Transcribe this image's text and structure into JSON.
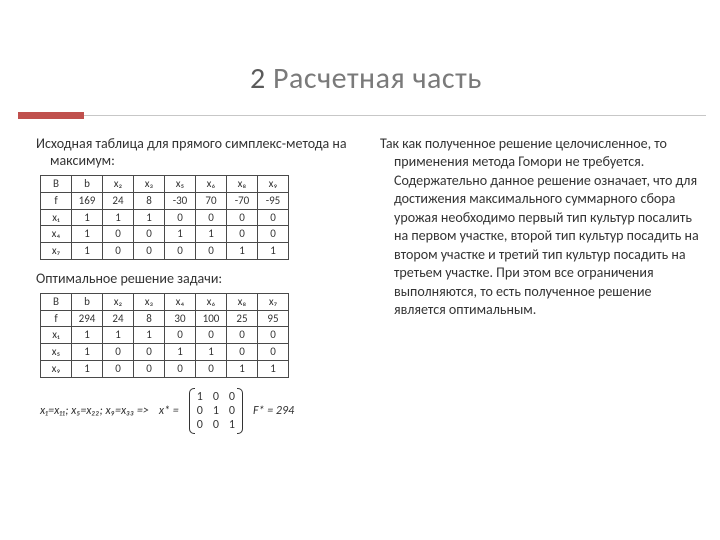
{
  "title": {
    "num": "2",
    "text": "Расчетная часть"
  },
  "accent_color": "#c0504d",
  "left": {
    "p1": "Исходная таблица для прямого симплекс-метода на максимум:",
    "p2": "Оптимальное решение задачи:",
    "table1": {
      "header": [
        "B",
        "b",
        "x₂",
        "x₃",
        "x₅",
        "x₆",
        "x₈",
        "x₉"
      ],
      "rows": [
        [
          "f",
          "169",
          "24",
          "8",
          "-30",
          "70",
          "-70",
          "-95"
        ],
        [
          "x₁",
          "1",
          "1",
          "1",
          "0",
          "0",
          "0",
          "0"
        ],
        [
          "x₄",
          "1",
          "0",
          "0",
          "1",
          "1",
          "0",
          "0"
        ],
        [
          "x₇",
          "1",
          "0",
          "0",
          "0",
          "0",
          "1",
          "1"
        ]
      ]
    },
    "table2": {
      "header": [
        "B",
        "b",
        "x₂",
        "x₃",
        "x₄",
        "x₆",
        "x₈",
        "x₇"
      ],
      "rows": [
        [
          "f",
          "294",
          "24",
          "8",
          "30",
          "100",
          "25",
          "95"
        ],
        [
          "x₁",
          "1",
          "1",
          "1",
          "0",
          "0",
          "0",
          "0"
        ],
        [
          "x₅",
          "1",
          "0",
          "0",
          "1",
          "1",
          "0",
          "0"
        ],
        [
          "x₉",
          "1",
          "0",
          "0",
          "0",
          "0",
          "1",
          "1"
        ]
      ]
    },
    "eq": {
      "lhs": "x₁=x₁₁;  x₅=x₂₂;  x₉=x₃₃ =>",
      "xstar_label": "x* =",
      "matrix": [
        [
          "1",
          "0",
          "0"
        ],
        [
          "0",
          "1",
          "0"
        ],
        [
          "0",
          "0",
          "1"
        ]
      ],
      "fstar": "F* = 294"
    }
  },
  "right": {
    "text": "Так как полученное решение целочисленное, то применения метода Гомори не требуется. Содержательно данное решение означает, что для достижения максимального суммарного сбора урожая необходимо первый тип культур посалить на первом участке, второй тип культур посадить на втором участке и третий тип культур посадить на третьем участке. При этом все ограничения выполняются, то есть полученное решение является оптимальным."
  }
}
